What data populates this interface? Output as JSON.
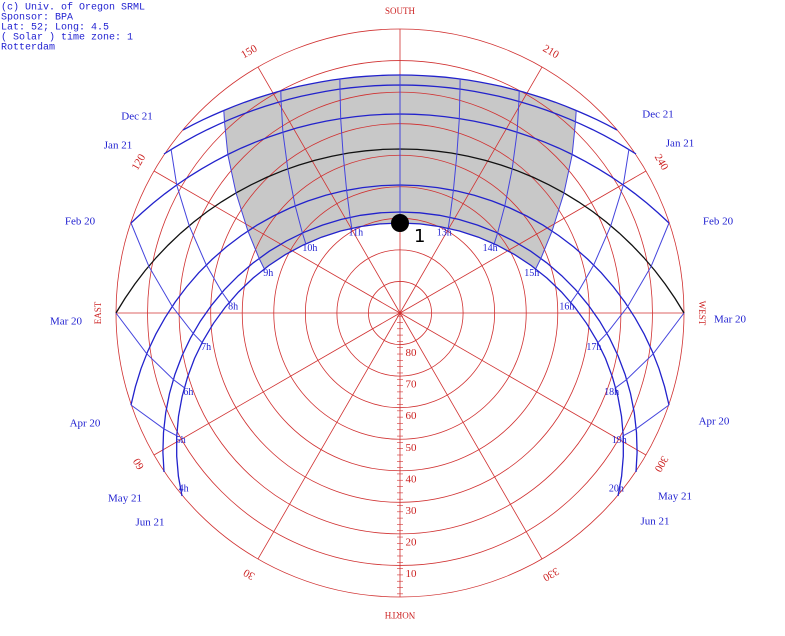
{
  "header": {
    "lines": [
      "(c) Univ. of Oregon SRML",
      "Sponsor: BPA",
      "Lat: 52; Long: 4.5",
      "( Solar ) time zone: 1",
      "Rotterdam"
    ]
  },
  "compass": {
    "south": "SOUTH",
    "north": "NORTH",
    "east": "EAST",
    "west": "WEST"
  },
  "azimuth_labels": [
    "30",
    "60",
    "120",
    "150",
    "210",
    "240",
    "300",
    "330"
  ],
  "elevation_labels": [
    "10",
    "20",
    "30",
    "40",
    "50",
    "60",
    "70",
    "80"
  ],
  "dates_left": [
    "Dec 21",
    "Jan 21",
    "Feb 20",
    "Mar 20",
    "Apr 20",
    "May 21",
    "Jun 21"
  ],
  "dates_right": [
    "Dec 21",
    "Jan 21",
    "Feb 20",
    "Mar 20",
    "Apr 20",
    "May 21",
    "Jun 21"
  ],
  "hour_labels": [
    "4h",
    "5h",
    "6h",
    "7h",
    "8h",
    "9h",
    "10h",
    "11h",
    "13h",
    "14h",
    "15h",
    "16h",
    "17h",
    "18h",
    "19h",
    "20h"
  ],
  "noon_marker": "1"
}
